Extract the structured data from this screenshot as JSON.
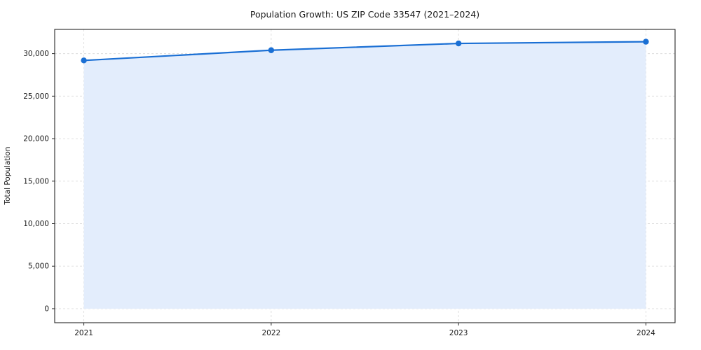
{
  "chart_data": {
    "type": "line",
    "title": "Population Growth: US ZIP Code 33547 (2021–2024)",
    "xlabel": "",
    "ylabel": "Total Population",
    "x": [
      2021,
      2022,
      2023,
      2024
    ],
    "x_tick_labels": [
      "2021",
      "2022",
      "2023",
      "2024"
    ],
    "series": [
      {
        "name": "Total Population",
        "values": [
          29200,
          30400,
          31200,
          31400
        ]
      }
    ],
    "yticks": [
      0,
      5000,
      10000,
      15000,
      20000,
      25000,
      30000
    ],
    "ylim": [
      -1650,
      32850
    ],
    "grid": true,
    "legend": "none",
    "colors": {
      "line": "#1a6fd4",
      "fill": "#e3edfc",
      "grid": "#dcdcdc",
      "spine": "#262626",
      "tick_text": "#1a1a1a"
    }
  }
}
